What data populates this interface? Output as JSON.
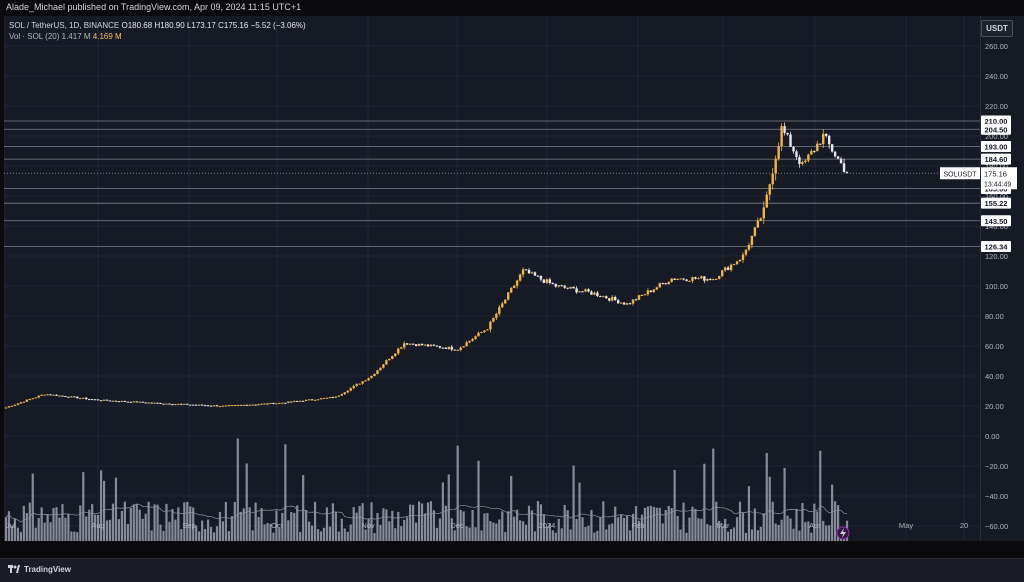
{
  "header": {
    "publisher_line": "Alade_Michael published on TradingView.com, Apr 09, 2024 11:15 UTC+1"
  },
  "legend": {
    "symbol_line": "SOL / TetherUS, 1D, BINANCE",
    "open": "O180.68",
    "high": "H180.90",
    "low": "L173.17",
    "close": "C175.16",
    "change": "−5.52 (−3.06%)",
    "vol_label": "Vol · SOL (20)",
    "vol_ma": "1.417 M",
    "vol_value": "4.169 M"
  },
  "currency": "USDT",
  "footer": {
    "brand": "TradingView"
  },
  "colors": {
    "background": "#161a25",
    "up_candle": "#f0b44a",
    "down_candle": "#e8e8ec",
    "volume_bar": "#9aa0ab",
    "grid": "#232733",
    "level_line": "#7c808c",
    "last_price_line": "#9aa0ab"
  },
  "chart_data": {
    "type": "candlestick",
    "symbol": "SOLUSDT",
    "interval": "1D",
    "y_ticks": [
      260,
      240,
      220,
      200,
      180,
      160,
      140,
      120,
      100,
      80,
      60,
      40,
      20,
      0,
      -20,
      -40,
      -60
    ],
    "y_tick_labels": [
      "260.00",
      "240.00",
      "220.00",
      "200.00",
      "180.00",
      "160.00",
      "140.00",
      "120.00",
      "100.00",
      "80.00",
      "60.00",
      "40.00",
      "20.00",
      "0.00",
      "−20.00",
      "−40.00",
      "−60.00"
    ],
    "x_labels": [
      "Jul",
      "Aug",
      "Sep",
      "Oct",
      "Nov",
      "Dec",
      "2024",
      "Feb",
      "Mar",
      "Apr",
      "May",
      "20"
    ],
    "grid": true,
    "horizontal_levels": [
      {
        "value": 210.0,
        "label": "210.00"
      },
      {
        "value": 204.5,
        "label": "204.50"
      },
      {
        "value": 193.0,
        "label": "193.00"
      },
      {
        "value": 184.6,
        "label": "184.60"
      },
      {
        "value": 165.0,
        "label": "165.00"
      },
      {
        "value": 155.22,
        "label": "155.22"
      },
      {
        "value": 143.5,
        "label": "143.50"
      },
      {
        "value": 126.34,
        "label": "126.34"
      }
    ],
    "last_price": {
      "label": "SOLUSDT",
      "value": "175.16",
      "countdown": "13:44:49"
    },
    "anchor_prices": [
      {
        "date": "2023-07-01",
        "close": 19
      },
      {
        "date": "2023-07-14",
        "close": 28
      },
      {
        "date": "2023-08-01",
        "close": 24
      },
      {
        "date": "2023-08-20",
        "close": 22
      },
      {
        "date": "2023-09-12",
        "close": 20
      },
      {
        "date": "2023-10-01",
        "close": 22
      },
      {
        "date": "2023-10-20",
        "close": 26
      },
      {
        "date": "2023-11-01",
        "close": 40
      },
      {
        "date": "2023-11-12",
        "close": 62
      },
      {
        "date": "2023-11-30",
        "close": 58
      },
      {
        "date": "2023-12-10",
        "close": 72
      },
      {
        "date": "2023-12-22",
        "close": 110
      },
      {
        "date": "2024-01-02",
        "close": 100
      },
      {
        "date": "2024-01-15",
        "close": 95
      },
      {
        "date": "2024-01-26",
        "close": 88
      },
      {
        "date": "2024-02-10",
        "close": 105
      },
      {
        "date": "2024-02-24",
        "close": 105
      },
      {
        "date": "2024-03-05",
        "close": 120
      },
      {
        "date": "2024-03-12",
        "close": 150
      },
      {
        "date": "2024-03-18",
        "close": 205
      },
      {
        "date": "2024-03-25",
        "close": 180
      },
      {
        "date": "2024-04-01",
        "close": 200
      },
      {
        "date": "2024-04-09",
        "close": 175.16
      }
    ],
    "volume_ma_last": 1.417,
    "volume_last": 4.169
  }
}
